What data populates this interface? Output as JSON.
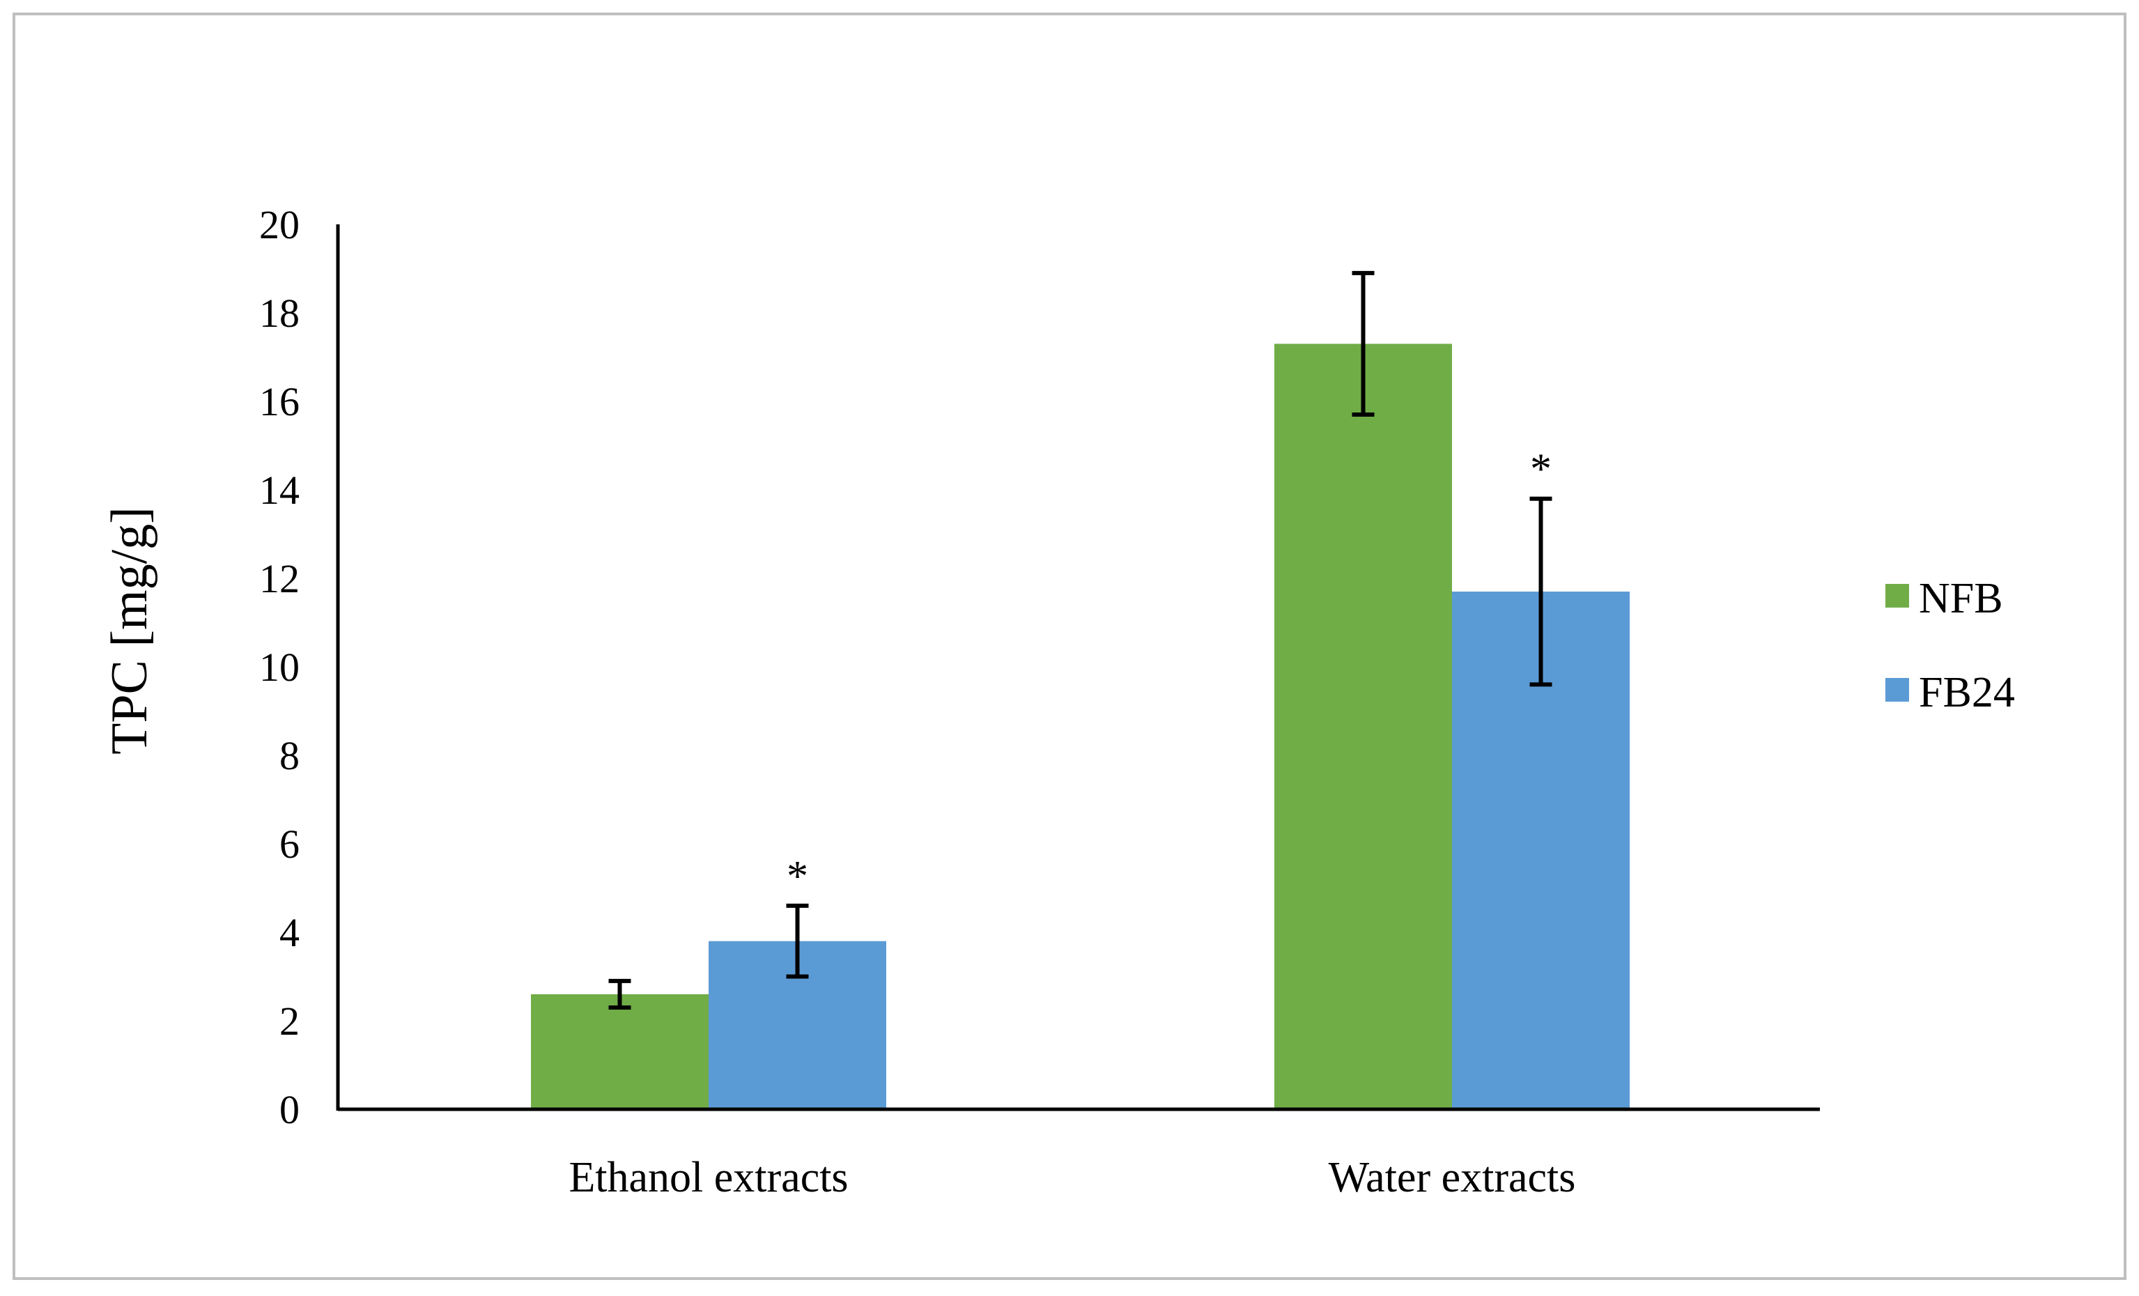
{
  "chart_data": {
    "type": "bar",
    "title": "",
    "xlabel": "",
    "ylabel": "TPC  [mg/g]",
    "ylim": [
      0,
      20
    ],
    "yticks": [
      0,
      2,
      4,
      6,
      8,
      10,
      12,
      14,
      16,
      18,
      20
    ],
    "tick_labels": [
      "0",
      "2",
      "4",
      "6",
      "8",
      "10",
      "12",
      "14",
      "16",
      "18",
      "20"
    ],
    "categories": [
      "Ethanol extracts",
      "Water extracts"
    ],
    "series": [
      {
        "name": "NFB",
        "color": "#70AD47",
        "values": [
          2.6,
          17.3
        ],
        "errors": [
          0.3,
          1.6
        ],
        "significance": [
          "",
          ""
        ]
      },
      {
        "name": "FB24",
        "color": "#5B9BD5",
        "values": [
          3.8,
          11.7
        ],
        "errors": [
          0.8,
          2.1
        ],
        "significance": [
          "*",
          "*"
        ]
      }
    ],
    "legend_position": "right",
    "grid": false
  }
}
